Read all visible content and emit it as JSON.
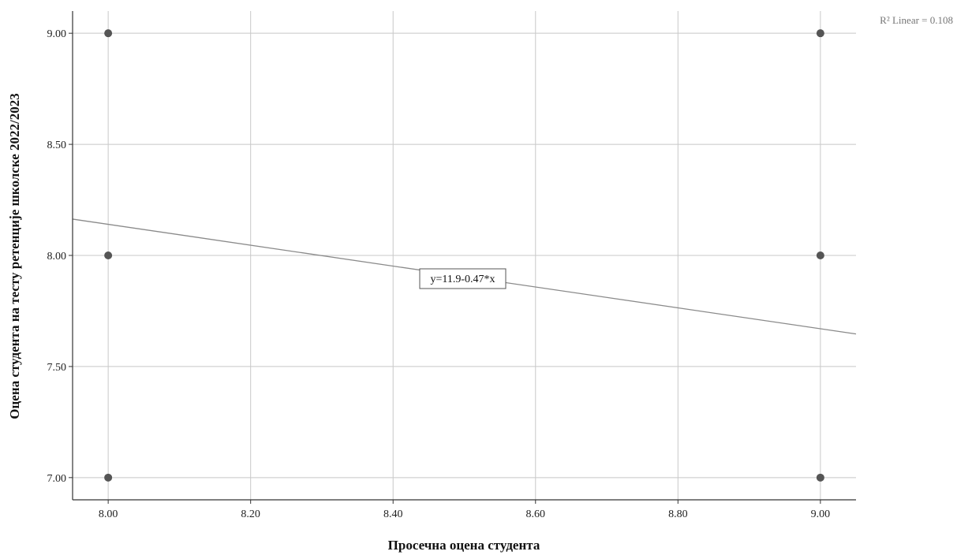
{
  "chart_data": {
    "type": "scatter",
    "title": "",
    "xlabel": "Просечна оцена студента",
    "ylabel": "Оцена студента на тесту ретенције школске 2022/2023",
    "xlim": [
      7.95,
      9.05
    ],
    "ylim": [
      6.9,
      9.1
    ],
    "x_ticks": [
      8.0,
      8.2,
      8.4,
      8.6,
      8.8,
      9.0
    ],
    "x_tick_labels": [
      "8.00",
      "8.20",
      "8.40",
      "8.60",
      "8.80",
      "9.00"
    ],
    "y_ticks": [
      7.0,
      7.5,
      8.0,
      8.5,
      9.0
    ],
    "y_tick_labels": [
      "7.00",
      "7.50",
      "8.00",
      "8.50",
      "9.00"
    ],
    "grid": true,
    "points": [
      {
        "x": 8.0,
        "y": 9.0
      },
      {
        "x": 8.0,
        "y": 8.0
      },
      {
        "x": 8.0,
        "y": 7.0
      },
      {
        "x": 9.0,
        "y": 9.0
      },
      {
        "x": 9.0,
        "y": 8.0
      },
      {
        "x": 9.0,
        "y": 7.0
      }
    ],
    "fit_line": {
      "intercept": 11.9,
      "slope": -0.47,
      "equation_label": "y=11.9-0.47*x",
      "r2_label": "R² Linear = 0.108"
    }
  },
  "colors": {
    "point": "#555555",
    "grid": "#c8c8c8",
    "fit_line": "#8a8a8a",
    "axis": "#333333"
  }
}
